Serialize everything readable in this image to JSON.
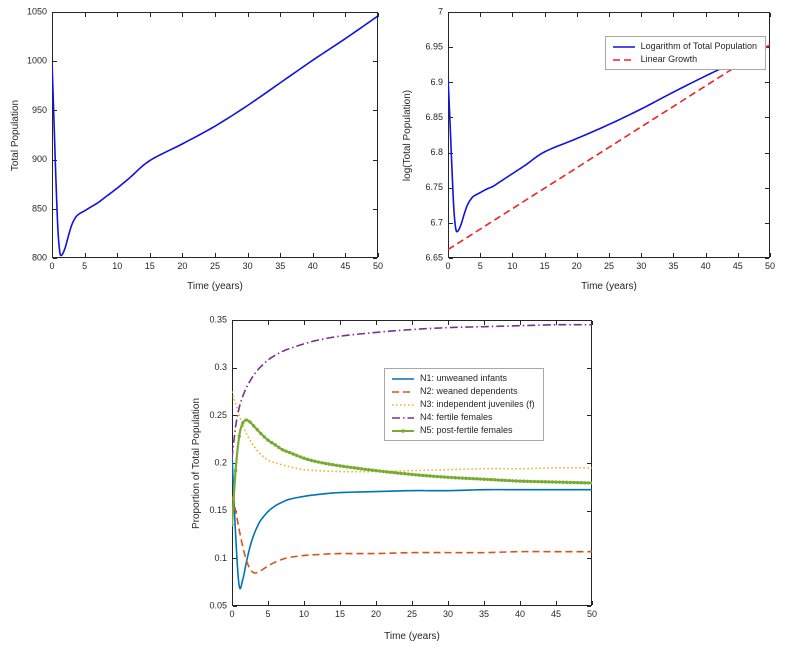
{
  "figure": {
    "background": "#ffffff",
    "axis_color": "#262626"
  },
  "chart_data": [
    {
      "id": "total-population",
      "type": "line",
      "title": "",
      "xlabel": "Time (years)",
      "ylabel": "Total Population",
      "xlim": [
        0,
        50
      ],
      "ylim": [
        800,
        1050
      ],
      "xticks": {
        "values": [
          0,
          5,
          10,
          15,
          20,
          25,
          30,
          35,
          40,
          45,
          50
        ],
        "labels": [
          "0",
          "5",
          "10",
          "15",
          "20",
          "25",
          "30",
          "35",
          "40",
          "45",
          "50"
        ]
      },
      "yticks": {
        "values": [
          800,
          850,
          900,
          950,
          1000,
          1050
        ],
        "labels": [
          "800",
          "850",
          "900",
          "950",
          "1000",
          "1050"
        ]
      },
      "legend": false,
      "series": [
        {
          "name": "Total Population",
          "color": "#1111e0",
          "dash": [],
          "width": 1.6,
          "x": [
            0,
            0.3,
            0.6,
            0.9,
            1.2,
            1.5,
            2,
            2.5,
            3,
            3.5,
            4,
            5,
            6,
            7,
            8,
            10,
            12,
            15,
            20,
            25,
            30,
            35,
            40,
            45,
            50
          ],
          "y": [
            1000,
            940,
            880,
            830,
            806,
            803,
            810,
            822,
            833,
            840,
            844,
            848,
            852,
            856,
            861,
            871,
            882,
            899,
            916,
            934,
            955,
            978,
            1001,
            1023,
            1046
          ]
        }
      ]
    },
    {
      "id": "log-total-population",
      "type": "line",
      "title": "",
      "xlabel": "Time (years)",
      "ylabel": "log(Total Population)",
      "xlim": [
        0,
        50
      ],
      "ylim": [
        6.65,
        7
      ],
      "xticks": {
        "values": [
          0,
          5,
          10,
          15,
          20,
          25,
          30,
          35,
          40,
          45,
          50
        ],
        "labels": [
          "0",
          "5",
          "10",
          "15",
          "20",
          "25",
          "30",
          "35",
          "40",
          "45",
          "50"
        ]
      },
      "yticks": {
        "values": [
          6.65,
          6.7,
          6.75,
          6.8,
          6.85,
          6.9,
          6.95,
          7
        ],
        "labels": [
          "6.65",
          "6.7",
          "6.75",
          "6.8",
          "6.85",
          "6.9",
          "6.95",
          "7"
        ]
      },
      "legend": true,
      "legend_position": "northeast",
      "series": [
        {
          "name": "Logarithm of Total Population",
          "color": "#1111e0",
          "dash": [],
          "width": 1.6,
          "x": [
            0,
            0.3,
            0.6,
            0.9,
            1.2,
            1.5,
            2,
            2.5,
            3,
            3.5,
            4,
            5,
            6,
            7,
            8,
            10,
            12,
            15,
            20,
            25,
            30,
            35,
            40,
            45,
            50
          ],
          "y": [
            6.908,
            6.846,
            6.78,
            6.721,
            6.692,
            6.688,
            6.697,
            6.712,
            6.725,
            6.733,
            6.738,
            6.743,
            6.748,
            6.752,
            6.758,
            6.77,
            6.782,
            6.801,
            6.82,
            6.84,
            6.862,
            6.886,
            6.909,
            6.931,
            6.953
          ]
        },
        {
          "name": "Linear Growth",
          "color": "#ee2222",
          "dash": [
            7,
            4
          ],
          "width": 1.6,
          "x": [
            0,
            50
          ],
          "y": [
            6.662,
            6.953
          ]
        }
      ]
    },
    {
      "id": "proportions",
      "type": "line",
      "title": "",
      "xlabel": "Time (years)",
      "ylabel": "Proportion of Total Population",
      "xlim": [
        0,
        50
      ],
      "ylim": [
        0.05,
        0.35
      ],
      "xticks": {
        "values": [
          0,
          5,
          10,
          15,
          20,
          25,
          30,
          35,
          40,
          45,
          50
        ],
        "labels": [
          "0",
          "5",
          "10",
          "15",
          "20",
          "25",
          "30",
          "35",
          "40",
          "45",
          "50"
        ]
      },
      "yticks": {
        "values": [
          0.05,
          0.1,
          0.15,
          0.2,
          0.25,
          0.3,
          0.35
        ],
        "labels": [
          "0.05",
          "0.1",
          "0.15",
          "0.2",
          "0.25",
          "0.3",
          "0.35"
        ]
      },
      "legend": true,
      "legend_position": "inside-upper-middle",
      "series": [
        {
          "name": "N1: unweaned infants",
          "color": "#0072BD",
          "dash": [],
          "width": 1.6,
          "x": [
            0,
            0.5,
            1,
            1.5,
            2,
            2.5,
            3,
            3.5,
            4,
            5,
            6,
            7,
            8,
            10,
            12,
            15,
            20,
            25,
            30,
            35,
            40,
            45,
            50
          ],
          "y": [
            0.21,
            0.125,
            0.071,
            0.078,
            0.096,
            0.112,
            0.124,
            0.133,
            0.14,
            0.149,
            0.155,
            0.159,
            0.162,
            0.165,
            0.167,
            0.169,
            0.17,
            0.171,
            0.171,
            0.172,
            0.172,
            0.172,
            0.172
          ]
        },
        {
          "name": "N2: weaned dependents",
          "color": "#D95319",
          "dash": [
            7,
            4
          ],
          "width": 1.6,
          "x": [
            0,
            0.5,
            1,
            1.5,
            2,
            2.5,
            3,
            3.5,
            4,
            5,
            6,
            7,
            8,
            10,
            12,
            15,
            20,
            25,
            30,
            35,
            40,
            45,
            50
          ],
          "y": [
            0.165,
            0.15,
            0.13,
            0.112,
            0.098,
            0.089,
            0.085,
            0.085,
            0.087,
            0.092,
            0.096,
            0.099,
            0.101,
            0.103,
            0.104,
            0.105,
            0.105,
            0.106,
            0.106,
            0.106,
            0.107,
            0.107,
            0.107
          ]
        },
        {
          "name": "N3: independent juveniles (f)",
          "color": "#EDB120",
          "dash": [
            1.5,
            2.5
          ],
          "width": 1.6,
          "x": [
            0,
            0.5,
            1,
            1.5,
            2,
            2.5,
            3,
            3.5,
            4,
            5,
            6,
            7,
            8,
            10,
            12,
            15,
            20,
            25,
            30,
            35,
            40,
            45,
            50
          ],
          "y": [
            0.275,
            0.262,
            0.25,
            0.24,
            0.231,
            0.224,
            0.218,
            0.213,
            0.209,
            0.203,
            0.2,
            0.198,
            0.196,
            0.193,
            0.192,
            0.191,
            0.191,
            0.192,
            0.193,
            0.194,
            0.194,
            0.195,
            0.195
          ]
        },
        {
          "name": "N4: fertile females",
          "color": "#7E2F8E",
          "dash": [
            8,
            3,
            1.5,
            3
          ],
          "width": 1.6,
          "x": [
            0,
            0.5,
            1,
            1.5,
            2,
            2.5,
            3,
            3.5,
            4,
            5,
            6,
            7,
            8,
            10,
            12,
            15,
            20,
            25,
            30,
            35,
            40,
            45,
            50
          ],
          "y": [
            0.205,
            0.238,
            0.258,
            0.27,
            0.279,
            0.286,
            0.292,
            0.297,
            0.301,
            0.308,
            0.313,
            0.317,
            0.32,
            0.325,
            0.329,
            0.333,
            0.337,
            0.34,
            0.342,
            0.343,
            0.344,
            0.345,
            0.345
          ]
        },
        {
          "name": "N5: post-fertile females",
          "color": "#77AC30",
          "dash": [],
          "width": 2.2,
          "marker": "dot",
          "x": [
            0,
            0.5,
            1,
            1.5,
            2,
            2.5,
            3,
            3.5,
            4,
            5,
            6,
            7,
            8,
            10,
            12,
            15,
            20,
            25,
            30,
            35,
            40,
            45,
            50
          ],
          "y": [
            0.135,
            0.192,
            0.228,
            0.242,
            0.245,
            0.243,
            0.239,
            0.235,
            0.231,
            0.224,
            0.219,
            0.214,
            0.211,
            0.205,
            0.201,
            0.197,
            0.192,
            0.188,
            0.185,
            0.183,
            0.181,
            0.18,
            0.179
          ]
        }
      ]
    }
  ]
}
